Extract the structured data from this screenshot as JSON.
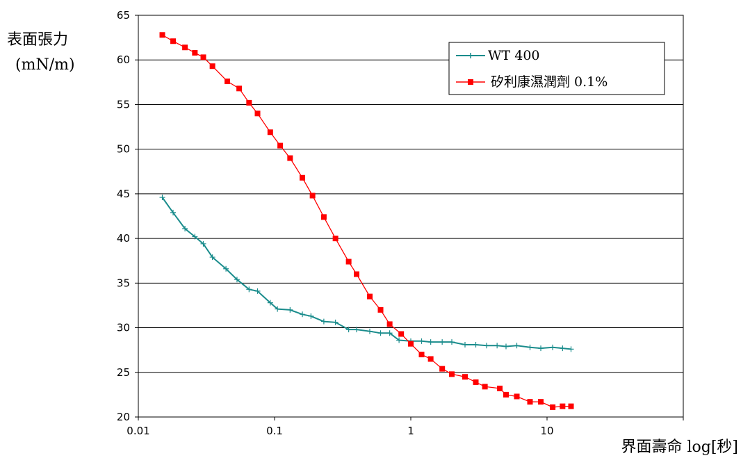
{
  "chart_data": {
    "type": "line",
    "title": "",
    "ylabel": "表面張力",
    "ylabel_unit": "(mN/m)",
    "xlabel": "界面壽命 log[秒]",
    "x_scale": "log",
    "xlim": [
      0.01,
      100
    ],
    "ylim": [
      20,
      65
    ],
    "x_ticks": [
      "0.01",
      "0.1",
      "1",
      "10"
    ],
    "y_ticks": [
      "65",
      "60",
      "55",
      "50",
      "45",
      "40",
      "35",
      "30",
      "25",
      "20"
    ],
    "grid": "horizontal",
    "legend_position": "top-right",
    "series": [
      {
        "name": "WT 400",
        "color": "#1a8c8c",
        "marker": "plus",
        "points": [
          [
            0.015,
            44.6
          ],
          [
            0.018,
            42.9
          ],
          [
            0.022,
            41.1
          ],
          [
            0.026,
            40.2
          ],
          [
            0.03,
            39.4
          ],
          [
            0.035,
            37.9
          ],
          [
            0.044,
            36.6
          ],
          [
            0.053,
            35.4
          ],
          [
            0.065,
            34.3
          ],
          [
            0.075,
            34.1
          ],
          [
            0.093,
            32.8
          ],
          [
            0.105,
            32.1
          ],
          [
            0.13,
            32.0
          ],
          [
            0.16,
            31.5
          ],
          [
            0.185,
            31.3
          ],
          [
            0.23,
            30.7
          ],
          [
            0.28,
            30.6
          ],
          [
            0.35,
            29.8
          ],
          [
            0.4,
            29.8
          ],
          [
            0.5,
            29.6
          ],
          [
            0.6,
            29.4
          ],
          [
            0.7,
            29.4
          ],
          [
            0.82,
            28.6
          ],
          [
            1.0,
            28.5
          ],
          [
            1.2,
            28.5
          ],
          [
            1.4,
            28.4
          ],
          [
            1.7,
            28.4
          ],
          [
            2.0,
            28.4
          ],
          [
            2.5,
            28.1
          ],
          [
            3.0,
            28.1
          ],
          [
            3.6,
            28.0
          ],
          [
            4.3,
            28.0
          ],
          [
            5.0,
            27.9
          ],
          [
            6.0,
            28.0
          ],
          [
            7.5,
            27.8
          ],
          [
            9.0,
            27.7
          ],
          [
            11.0,
            27.8
          ],
          [
            13.0,
            27.7
          ],
          [
            15.0,
            27.6
          ]
        ]
      },
      {
        "name": "矽利康濕潤劑  0.1%",
        "color": "#ff0000",
        "marker": "square",
        "points": [
          [
            0.015,
            62.8
          ],
          [
            0.018,
            62.1
          ],
          [
            0.022,
            61.4
          ],
          [
            0.026,
            60.8
          ],
          [
            0.03,
            60.3
          ],
          [
            0.035,
            59.3
          ],
          [
            0.045,
            57.6
          ],
          [
            0.055,
            56.8
          ],
          [
            0.065,
            55.2
          ],
          [
            0.075,
            54.0
          ],
          [
            0.093,
            51.9
          ],
          [
            0.11,
            50.4
          ],
          [
            0.13,
            49.0
          ],
          [
            0.16,
            46.8
          ],
          [
            0.19,
            44.8
          ],
          [
            0.23,
            42.4
          ],
          [
            0.28,
            40.0
          ],
          [
            0.35,
            37.4
          ],
          [
            0.4,
            36.0
          ],
          [
            0.5,
            33.5
          ],
          [
            0.6,
            32.0
          ],
          [
            0.7,
            30.4
          ],
          [
            0.85,
            29.3
          ],
          [
            1.0,
            28.2
          ],
          [
            1.2,
            27.0
          ],
          [
            1.4,
            26.5
          ],
          [
            1.7,
            25.4
          ],
          [
            2.0,
            24.8
          ],
          [
            2.5,
            24.5
          ],
          [
            3.0,
            23.9
          ],
          [
            3.5,
            23.4
          ],
          [
            4.5,
            23.2
          ],
          [
            5.0,
            22.5
          ],
          [
            6.0,
            22.3
          ],
          [
            7.5,
            21.7
          ],
          [
            9.0,
            21.7
          ],
          [
            11.0,
            21.1
          ],
          [
            13.0,
            21.2
          ],
          [
            15.0,
            21.2
          ]
        ]
      }
    ]
  }
}
